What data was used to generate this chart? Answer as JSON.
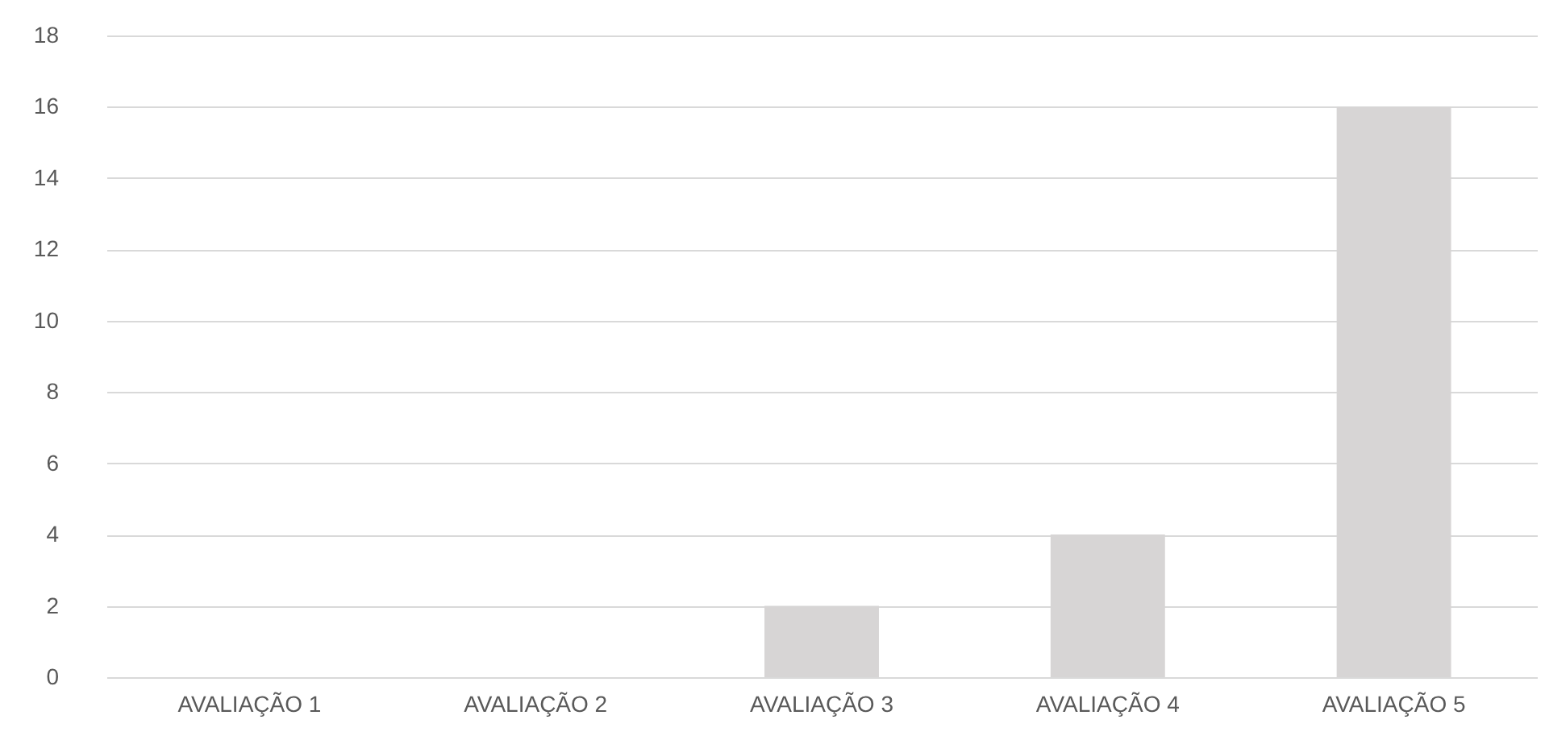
{
  "chart_data": {
    "type": "bar",
    "categories": [
      "AVALIAÇÃO 1",
      "AVALIAÇÃO 2",
      "AVALIAÇÃO 3",
      "AVALIAÇÃO 4",
      "AVALIAÇÃO 5"
    ],
    "values": [
      0,
      0,
      2,
      4,
      16
    ],
    "color": "#d7d5d5",
    "ylim": [
      0,
      18
    ],
    "yticks": [
      0,
      2,
      4,
      6,
      8,
      10,
      12,
      14,
      16,
      18
    ],
    "grid": "y"
  }
}
